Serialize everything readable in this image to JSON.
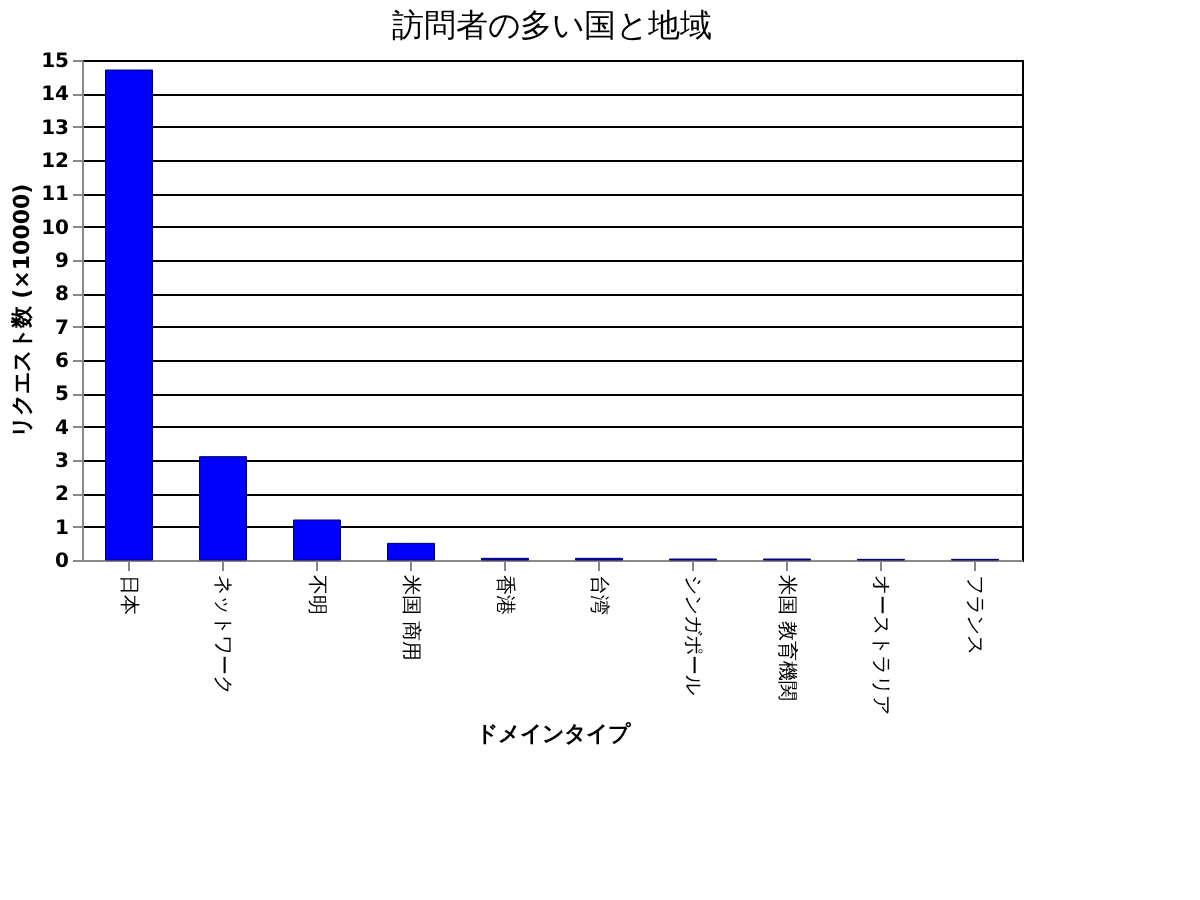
{
  "chart_data": {
    "type": "bar",
    "title": "訪問者の多い国と地域",
    "xlabel": "ドメインタイプ",
    "ylabel": "リクエスト数 (×10000)",
    "categories": [
      "日本",
      "ネットワーク",
      "不明",
      "米国 商用",
      "香港",
      "台湾",
      "シンガポール",
      "米国 教育機関",
      "オーストラリア",
      "フランス"
    ],
    "values": [
      14.7,
      3.1,
      1.2,
      0.5,
      0.05,
      0.05,
      0.03,
      0.03,
      0.02,
      0.02
    ],
    "color": "#0000ff",
    "ylim": [
      0,
      15
    ],
    "yticks": [
      0,
      1,
      2,
      3,
      4,
      5,
      6,
      7,
      8,
      9,
      10,
      11,
      12,
      13,
      14,
      15
    ],
    "grid": "y"
  }
}
